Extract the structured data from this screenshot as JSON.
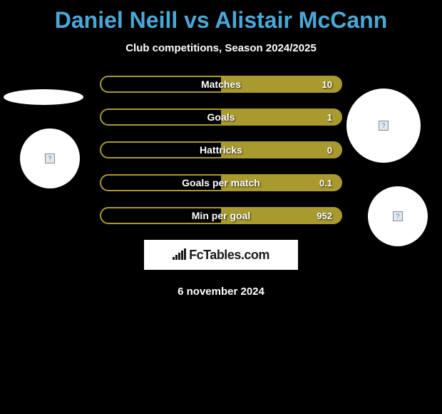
{
  "title": "Daniel Neill vs Alistair McCann",
  "subtitle": "Club competitions, Season 2024/2025",
  "date": "6 november 2024",
  "branding": "FcTables.com",
  "colors": {
    "background": "#000000",
    "title_color": "#4aa8d8",
    "text_color": "#ffffff",
    "bar_color": "#a89a2e",
    "circle_color": "#ffffff"
  },
  "stats": [
    {
      "label": "Matches",
      "right_value": "10"
    },
    {
      "label": "Goals",
      "right_value": "1"
    },
    {
      "label": "Hattricks",
      "right_value": "0"
    },
    {
      "label": "Goals per match",
      "right_value": "0.1"
    },
    {
      "label": "Min per goal",
      "right_value": "952"
    }
  ],
  "branding_bars_heights": [
    4,
    7,
    10,
    13,
    16
  ]
}
